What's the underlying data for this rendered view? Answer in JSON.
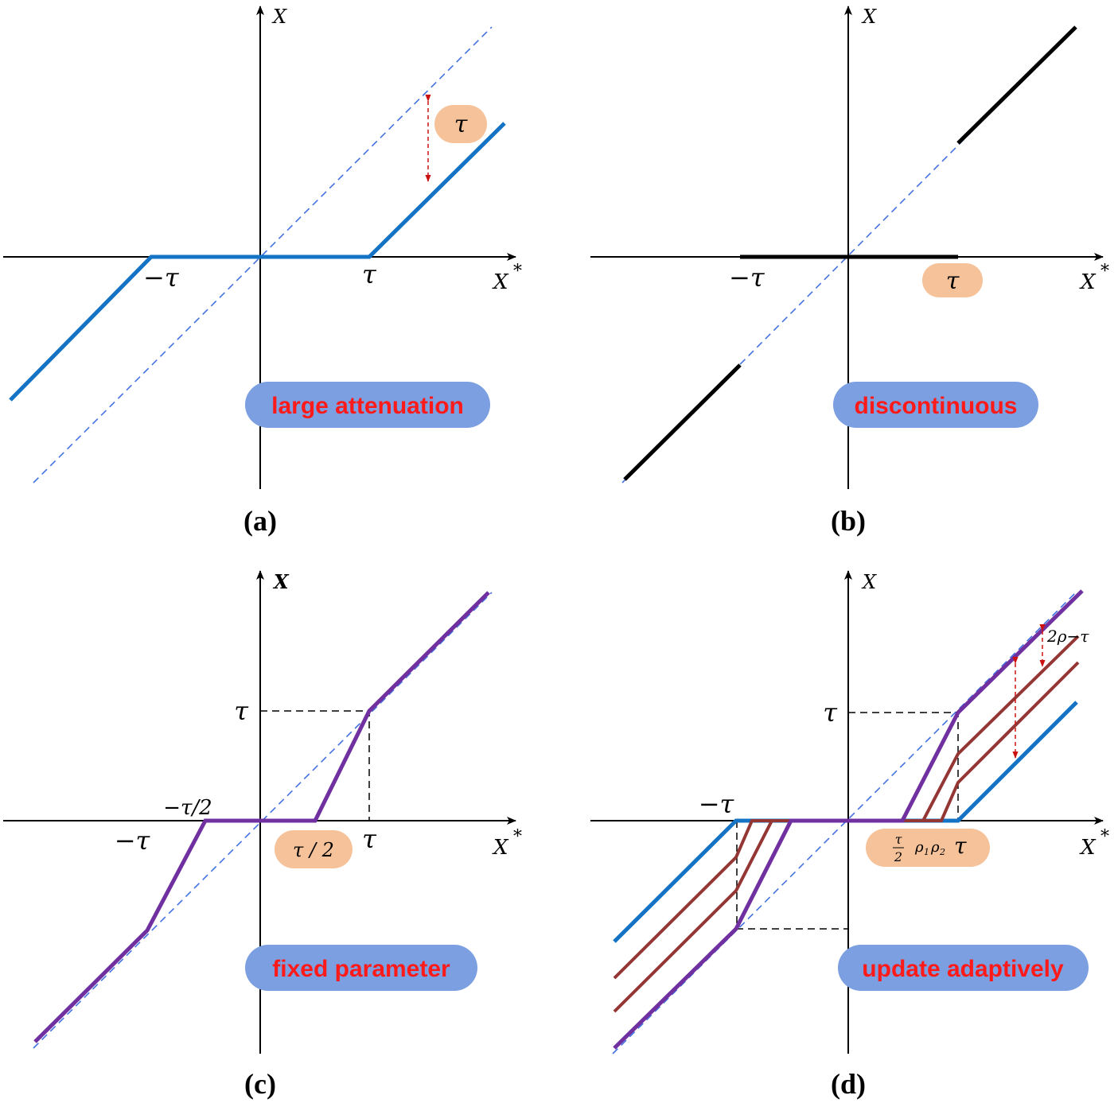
{
  "colors": {
    "blue": "#1473c4",
    "purple": "#7030a0",
    "brown": "#943634",
    "black": "#000000",
    "dash_blue": "#4472e0",
    "red_arrow": "#cc1010",
    "pill_blue": "#7b9fe0",
    "pill_orange": "#f5c29a",
    "pill_text": "#ff1a1a"
  },
  "panels": {
    "a": {
      "caption": "(a)",
      "y_label": "X",
      "x_label": "X",
      "x_label_sup": "*",
      "tick_neg": "−τ",
      "tick_pos": "τ",
      "gap_label": "τ",
      "pill": "large attenuation"
    },
    "b": {
      "caption": "(b)",
      "y_label": "X",
      "x_label": "X",
      "x_label_sup": "*",
      "tick_neg": "−τ",
      "tick_pos": "τ",
      "pill": "discontinuous"
    },
    "c": {
      "caption": "(c)",
      "y_label": "X",
      "x_label": "X",
      "x_label_sup": "*",
      "tick_neg": "−τ",
      "tick_pos": "τ",
      "tick_half_neg": "−τ/2",
      "tick_y": "τ",
      "half_label": "τ / 2",
      "pill": "fixed parameter"
    },
    "d": {
      "caption": "(d)",
      "y_label": "X",
      "x_label": "X",
      "x_label_sup": "*",
      "tick_neg": "−τ",
      "tick_y": "τ",
      "gap_label": "2ρ−τ",
      "frac_num": "τ",
      "frac_den": "2",
      "rho": "ρ",
      "rho1_sub": "1",
      "rho2_sub": "2",
      "tau_end": "τ",
      "pill": "update adaptively"
    }
  }
}
